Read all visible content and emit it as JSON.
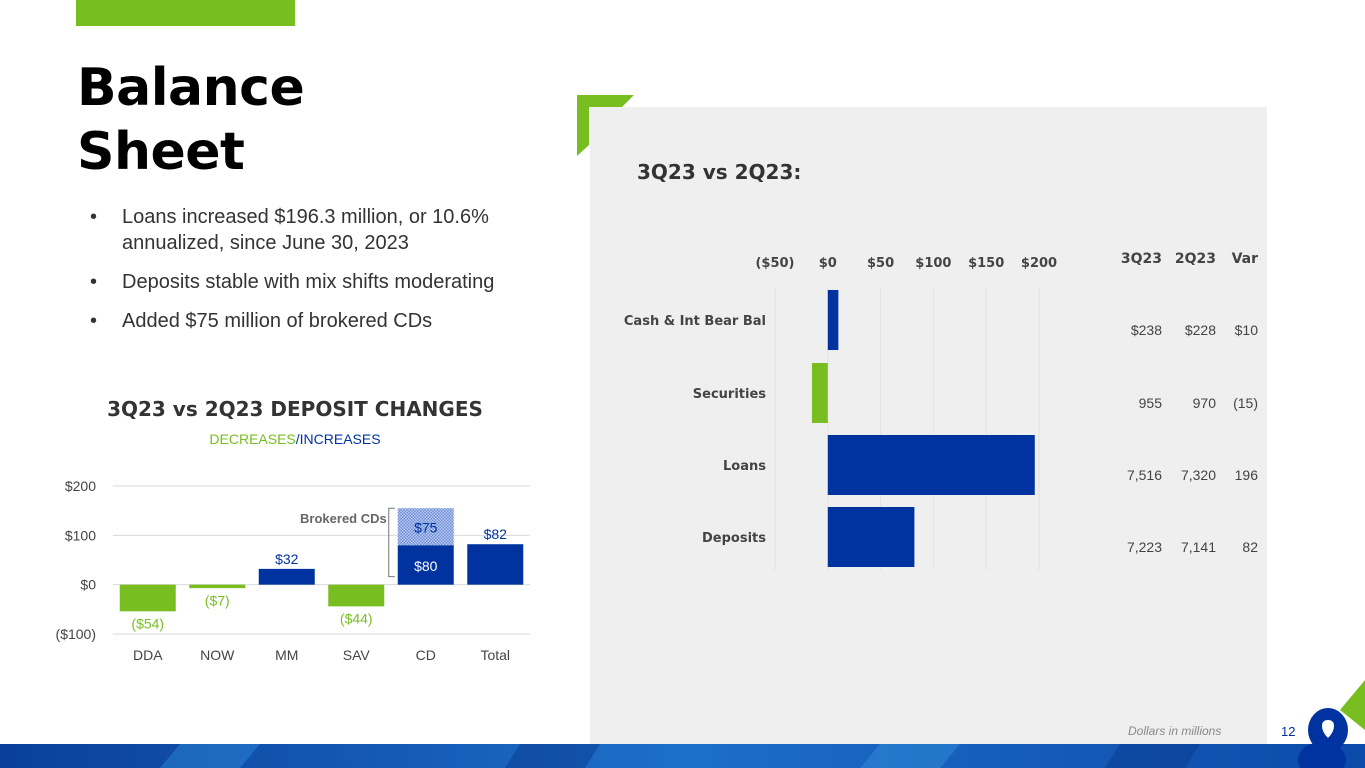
{
  "page": {
    "title_line1": "Balance",
    "title_line2": "Sheet",
    "bullets": [
      "Loans increased $196.3 million, or 10.6% annualized, since June 30, 2023",
      "Deposits stable with mix shifts moderating",
      "Added $75 million of brokered CDs"
    ],
    "panel_title": "3Q23 vs 2Q23:",
    "footnote": "Dollars in millions",
    "page_number": "12"
  },
  "colors": {
    "green": "#78be20",
    "blue": "#0033a0",
    "panel_bg": "#efefef"
  },
  "chart_data": [
    {
      "type": "bar",
      "title": "3Q23 vs 2Q23 DEPOSIT CHANGES",
      "subtitle_decreases": "DECREASES",
      "subtitle_separator": "/",
      "subtitle_increases": "INCREASES",
      "categories": [
        "DDA",
        "NOW",
        "MM",
        "SAV",
        "CD",
        "Total"
      ],
      "values": [
        -54,
        -7,
        32,
        -44,
        80,
        82
      ],
      "labels": [
        "($54)",
        "($7)",
        "$32",
        "($44)",
        "$80",
        "$82"
      ],
      "stacked_extra": {
        "category": "CD",
        "value": 75,
        "label": "$75",
        "annotation": "Brokered CDs"
      },
      "yticks": [
        200,
        100,
        0,
        -100
      ],
      "ytick_labels": [
        "$200",
        "$100",
        "$0",
        "($100)"
      ],
      "ylim": [
        -100,
        200
      ],
      "grid": true
    },
    {
      "type": "bar",
      "orientation": "horizontal",
      "categories": [
        "Cash & Int Bear Bal",
        "Securities",
        "Loans",
        "Deposits"
      ],
      "values": [
        10,
        -15,
        196,
        82
      ],
      "xticks": [
        -50,
        0,
        50,
        100,
        150,
        200
      ],
      "xtick_labels": [
        "($50)",
        "$0",
        "$50",
        "$100",
        "$150",
        "$200"
      ],
      "xlim": [
        -50,
        200
      ],
      "table": {
        "headers": [
          "3Q23",
          "2Q23",
          "Var"
        ],
        "rows": [
          [
            "$238",
            "$228",
            "$10"
          ],
          [
            "955",
            "970",
            "(15)"
          ],
          [
            "7,516",
            "7,320",
            "196"
          ],
          [
            "7,223",
            "7,141",
            "82"
          ]
        ]
      }
    }
  ]
}
